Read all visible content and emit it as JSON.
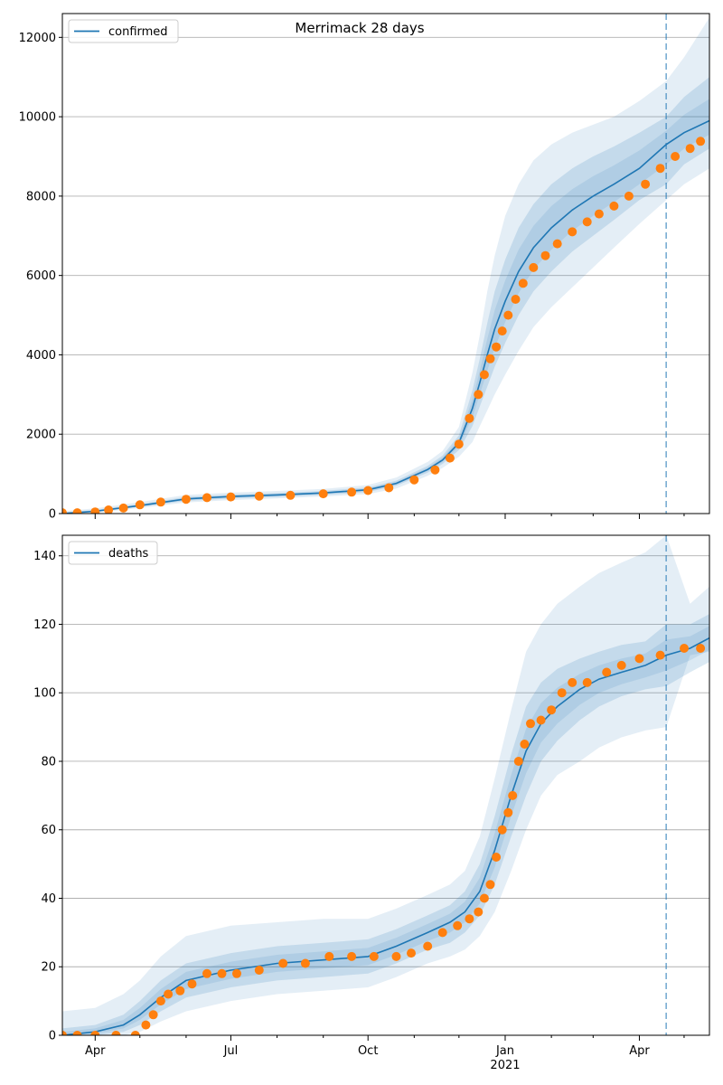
{
  "chart_data": {
    "type": "line",
    "title": "Merrimack 28 days",
    "x_tick_labels": [
      "Apr",
      "Jul",
      "Oct",
      "Jan",
      "Apr"
    ],
    "x_year_label": "2021",
    "forecast_start": "2021-04-19",
    "colors": {
      "line": "#1f77b4",
      "points": "#ff7f0e",
      "band": "#1f77b4",
      "grid": "#b0b0b0"
    },
    "panels": [
      {
        "legend": "confirmed",
        "legend_placement": "top-left",
        "grid": "y",
        "ylim": [
          0,
          12600
        ],
        "y_ticks": [
          0,
          2000,
          4000,
          6000,
          8000,
          10000,
          12000
        ],
        "model": {
          "dates": [
            "2020-03-10",
            "2020-04-01",
            "2020-05-01",
            "2020-06-01",
            "2020-07-01",
            "2020-08-01",
            "2020-09-01",
            "2020-10-01",
            "2020-10-20",
            "2020-11-10",
            "2020-11-20",
            "2020-12-01",
            "2020-12-10",
            "2020-12-15",
            "2020-12-20",
            "2020-12-25",
            "2021-01-01",
            "2021-01-10",
            "2021-01-20",
            "2021-02-01",
            "2021-02-15",
            "2021-03-01",
            "2021-03-15",
            "2021-04-01",
            "2021-04-19",
            "2021-05-01",
            "2021-05-18"
          ],
          "values": [
            0,
            60,
            200,
            370,
            430,
            470,
            520,
            600,
            760,
            1110,
            1350,
            1780,
            2650,
            3300,
            4000,
            4650,
            5350,
            6100,
            6700,
            7200,
            7650,
            8000,
            8300,
            8700,
            9300,
            9600,
            9900
          ],
          "bands": [
            {
              "lo": [
                0,
                40,
                170,
                320,
                380,
                420,
                470,
                540,
                700,
                1030,
                1250,
                1600,
                2200,
                2700,
                3200,
                3700,
                4300,
                5000,
                5600,
                6100,
                6600,
                7000,
                7400,
                7900,
                8300,
                8800,
                9200
              ],
              "hi": [
                30,
                90,
                240,
                420,
                480,
                520,
                570,
                660,
                830,
                1200,
                1460,
                1970,
                3100,
                3900,
                4800,
                5600,
                6400,
                7200,
                7800,
                8300,
                8700,
                9000,
                9250,
                9600,
                10000,
                10500,
                11000
              ]
            },
            {
              "lo": [
                0,
                20,
                140,
                280,
                340,
                380,
                430,
                490,
                630,
                950,
                1150,
                1430,
                1800,
                2200,
                2600,
                3000,
                3500,
                4100,
                4700,
                5200,
                5700,
                6200,
                6700,
                7300,
                7900,
                8300,
                8700
              ],
              "hi": [
                60,
                130,
                290,
                470,
                530,
                570,
                620,
                720,
                910,
                1300,
                1580,
                2180,
                3550,
                4500,
                5600,
                6500,
                7500,
                8300,
                8900,
                9300,
                9600,
                9800,
                10000,
                10400,
                10900,
                11500,
                12500
              ]
            }
          ]
        },
        "observed": {
          "dates": [
            "2020-03-10",
            "2020-03-20",
            "2020-04-01",
            "2020-04-10",
            "2020-04-20",
            "2020-05-01",
            "2020-05-15",
            "2020-06-01",
            "2020-06-15",
            "2020-07-01",
            "2020-07-20",
            "2020-08-10",
            "2020-09-01",
            "2020-09-20",
            "2020-10-01",
            "2020-10-15",
            "2020-11-01",
            "2020-11-15",
            "2020-11-25",
            "2020-12-01",
            "2020-12-08",
            "2020-12-14",
            "2020-12-18",
            "2020-12-22",
            "2020-12-26",
            "2020-12-30",
            "2021-01-03",
            "2021-01-08",
            "2021-01-13",
            "2021-01-20",
            "2021-01-28",
            "2021-02-05",
            "2021-02-15",
            "2021-02-25",
            "2021-03-05",
            "2021-03-15",
            "2021-03-25",
            "2021-04-05",
            "2021-04-15",
            "2021-04-25",
            "2021-05-05",
            "2021-05-12"
          ],
          "values": [
            20,
            20,
            40,
            90,
            140,
            220,
            290,
            360,
            400,
            420,
            440,
            460,
            500,
            540,
            580,
            650,
            850,
            1100,
            1400,
            1750,
            2400,
            3000,
            3500,
            3900,
            4200,
            4600,
            5000,
            5400,
            5800,
            6200,
            6500,
            6800,
            7100,
            7350,
            7550,
            7750,
            8000,
            8300,
            8700,
            9000,
            9200,
            9380
          ]
        }
      },
      {
        "legend": "deaths",
        "legend_placement": "top-left",
        "grid": "y",
        "ylim": [
          0,
          146
        ],
        "y_ticks": [
          0,
          20,
          40,
          60,
          80,
          100,
          120,
          140
        ],
        "model": {
          "dates": [
            "2020-03-10",
            "2020-04-01",
            "2020-04-20",
            "2020-05-01",
            "2020-05-15",
            "2020-06-01",
            "2020-07-01",
            "2020-08-01",
            "2020-09-01",
            "2020-10-01",
            "2020-10-20",
            "2020-11-10",
            "2020-11-25",
            "2020-12-05",
            "2020-12-15",
            "2020-12-25",
            "2021-01-05",
            "2021-01-15",
            "2021-01-25",
            "2021-02-05",
            "2021-02-20",
            "2021-03-05",
            "2021-03-20",
            "2021-04-05",
            "2021-04-19",
            "2021-05-05",
            "2021-05-18"
          ],
          "values": [
            0,
            1,
            3,
            6,
            11,
            16,
            19,
            21,
            22,
            23,
            26,
            30,
            33,
            36,
            42,
            54,
            70,
            83,
            91,
            96,
            101,
            104,
            106,
            108,
            111,
            113,
            116
          ],
          "bands": [
            {
              "lo": [
                0,
                0,
                1,
                3,
                7,
                11,
                14,
                16,
                17,
                18,
                21,
                25,
                27,
                30,
                35,
                44,
                58,
                70,
                80,
                86,
                92,
                96,
                99,
                101,
                102,
                106,
                109
              ],
              "hi": [
                2,
                3,
                6,
                10,
                16,
                21,
                24,
                26,
                27,
                28,
                31,
                35,
                38,
                42,
                50,
                64,
                82,
                96,
                103,
                107,
                110,
                112,
                114,
                115,
                120,
                120,
                123
              ]
            },
            {
              "lo": [
                0,
                0,
                0,
                1,
                4,
                7,
                10,
                12,
                13,
                14,
                17,
                21,
                23,
                25,
                29,
                36,
                48,
                60,
                70,
                76,
                80,
                84,
                87,
                89,
                90,
                111,
                112
              ],
              "hi": [
                7,
                8,
                12,
                16,
                23,
                29,
                32,
                33,
                34,
                34,
                37,
                41,
                44,
                48,
                58,
                75,
                95,
                112,
                120,
                126,
                131,
                135,
                138,
                141,
                146,
                126,
                131
              ]
            }
          ]
        },
        "observed": {
          "dates": [
            "2020-03-10",
            "2020-03-20",
            "2020-04-01",
            "2020-04-15",
            "2020-04-28",
            "2020-05-05",
            "2020-05-10",
            "2020-05-15",
            "2020-05-20",
            "2020-05-28",
            "2020-06-05",
            "2020-06-15",
            "2020-06-25",
            "2020-07-05",
            "2020-07-20",
            "2020-08-05",
            "2020-08-20",
            "2020-09-05",
            "2020-09-20",
            "2020-10-05",
            "2020-10-20",
            "2020-10-30",
            "2020-11-10",
            "2020-11-20",
            "2020-11-30",
            "2020-12-08",
            "2020-12-14",
            "2020-12-18",
            "2020-12-22",
            "2020-12-26",
            "2020-12-30",
            "2021-01-03",
            "2021-01-06",
            "2021-01-10",
            "2021-01-14",
            "2021-01-18",
            "2021-01-25",
            "2021-02-01",
            "2021-02-08",
            "2021-02-15",
            "2021-02-25",
            "2021-03-10",
            "2021-03-20",
            "2021-04-01",
            "2021-04-15",
            "2021-05-01",
            "2021-05-12"
          ],
          "values": [
            0,
            0,
            0,
            0,
            0,
            3,
            6,
            10,
            12,
            13,
            15,
            18,
            18,
            18,
            19,
            21,
            21,
            23,
            23,
            23,
            23,
            24,
            26,
            30,
            32,
            34,
            36,
            40,
            44,
            52,
            60,
            65,
            70,
            80,
            85,
            91,
            92,
            95,
            100,
            103,
            103,
            106,
            108,
            110,
            111,
            113,
            113
          ]
        }
      }
    ]
  }
}
